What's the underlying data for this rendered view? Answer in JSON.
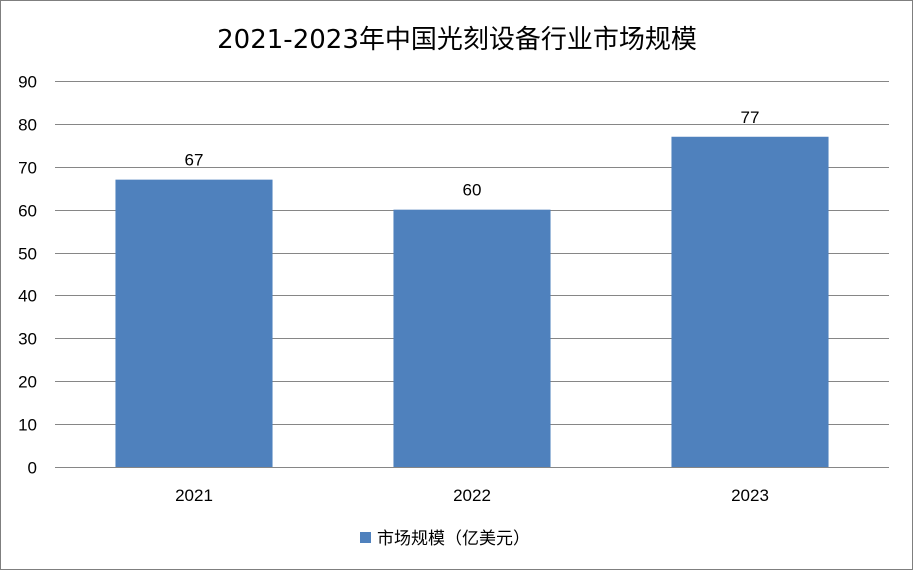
{
  "chart_data": {
    "type": "bar",
    "title": "2021-2023年中国光刻设备行业市场规模",
    "categories": [
      "2021",
      "2022",
      "2023"
    ],
    "series": [
      {
        "name": "市场规模（亿美元）",
        "values": [
          67,
          60,
          77
        ],
        "color": "#4f81bd"
      }
    ],
    "ylim": [
      0,
      90
    ],
    "yticks": [
      0,
      10,
      20,
      30,
      40,
      50,
      60,
      70,
      80,
      90
    ],
    "grid": true,
    "legend_position": "bottom",
    "data_labels": true
  }
}
